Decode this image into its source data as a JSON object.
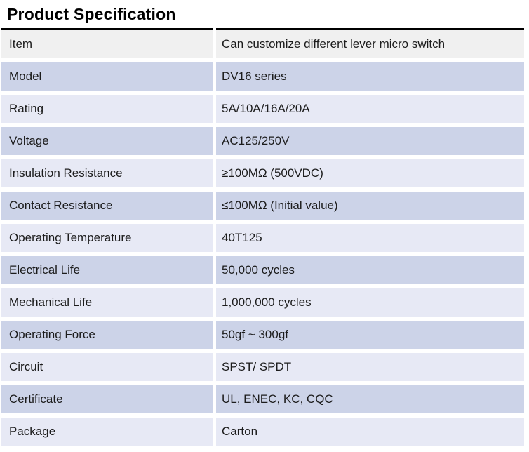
{
  "page": {
    "title": "Product Specification"
  },
  "colors": {
    "header_row_bg": "#f0f0f0",
    "row_alt_dark": "#ccd3e8",
    "row_alt_light": "#e7e9f5",
    "top_border": "#000000",
    "text": "#1c1c1c"
  },
  "table": {
    "rows": [
      {
        "label": "Item",
        "value": "Can customize different lever micro switch"
      },
      {
        "label": "Model",
        "value": "DV16 series"
      },
      {
        "label": "Rating",
        "value": "5A/10A/16A/20A"
      },
      {
        "label": "Voltage",
        "value": "AC125/250V"
      },
      {
        "label": "Insulation Resistance",
        "value": "≥100MΩ (500VDC)"
      },
      {
        "label": "Contact Resistance",
        "value": "≤100MΩ (Initial value)"
      },
      {
        "label": "Operating Temperature",
        "value": "40T125"
      },
      {
        "label": "Electrical Life",
        "value": "50,000 cycles"
      },
      {
        "label": "Mechanical Life",
        "value": "1,000,000 cycles"
      },
      {
        "label": "Operating Force",
        "value": "50gf ~ 300gf"
      },
      {
        "label": "Circuit",
        "value": "SPST/ SPDT"
      },
      {
        "label": "Certificate",
        "value": "UL, ENEC, KC, CQC"
      },
      {
        "label": "Package",
        "value": "Carton"
      }
    ]
  }
}
